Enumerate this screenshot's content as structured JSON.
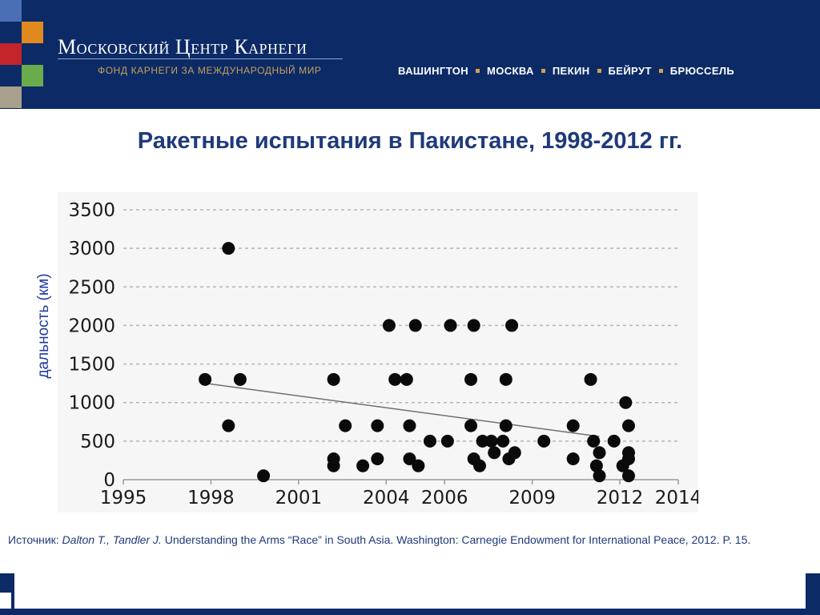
{
  "header": {
    "brand_title": "Московский Центр Карнеги",
    "brand_subtitle": "ФОНД КАРНЕГИ ЗА МЕЖДУНАРОДНЫЙ МИР",
    "cities": [
      "ВАШИНГТОН",
      "МОСКВА",
      "ПЕКИН",
      "БЕЙРУТ",
      "БРЮССЕЛЬ"
    ],
    "colors": {
      "band": "#0b2a66",
      "orange": "#e08a1e",
      "red": "#c4242b",
      "green": "#6aab4b",
      "grey": "#a89f8c",
      "light_blue": "#4a6fb5"
    }
  },
  "slide": {
    "title": "Ракетные испытания в Пакистане, 1998-2012 гг."
  },
  "chart_data": {
    "type": "scatter",
    "title": "",
    "xlabel": "",
    "ylabel": "дальность (км)",
    "xlim": [
      1995,
      2014
    ],
    "ylim": [
      0,
      3500
    ],
    "x_ticks": [
      1995,
      1998,
      2001,
      2004,
      2006,
      2009,
      2012,
      2014
    ],
    "y_ticks": [
      0,
      500,
      1000,
      1500,
      2000,
      2500,
      3000,
      3500
    ],
    "grid": "horizontal-dashed",
    "trendline": {
      "x": [
        1997.8,
        2011.3
      ],
      "y": [
        1250,
        560
      ]
    },
    "points": [
      {
        "x": 1997.8,
        "y": 1300
      },
      {
        "x": 1998.6,
        "y": 3000
      },
      {
        "x": 1998.6,
        "y": 700
      },
      {
        "x": 1999.0,
        "y": 1300
      },
      {
        "x": 1999.8,
        "y": 50
      },
      {
        "x": 2002.2,
        "y": 1300
      },
      {
        "x": 2002.2,
        "y": 270
      },
      {
        "x": 2002.2,
        "y": 180
      },
      {
        "x": 2002.6,
        "y": 700
      },
      {
        "x": 2003.2,
        "y": 180
      },
      {
        "x": 2003.7,
        "y": 700
      },
      {
        "x": 2003.7,
        "y": 270
      },
      {
        "x": 2004.1,
        "y": 2000
      },
      {
        "x": 2004.3,
        "y": 1300
      },
      {
        "x": 2004.7,
        "y": 1300
      },
      {
        "x": 2004.8,
        "y": 700
      },
      {
        "x": 2004.8,
        "y": 270
      },
      {
        "x": 2005.0,
        "y": 2000
      },
      {
        "x": 2005.1,
        "y": 180
      },
      {
        "x": 2005.5,
        "y": 500
      },
      {
        "x": 2006.1,
        "y": 500
      },
      {
        "x": 2006.2,
        "y": 2000
      },
      {
        "x": 2006.9,
        "y": 1300
      },
      {
        "x": 2006.9,
        "y": 700
      },
      {
        "x": 2007.0,
        "y": 2000
      },
      {
        "x": 2007.0,
        "y": 270
      },
      {
        "x": 2007.2,
        "y": 180
      },
      {
        "x": 2007.3,
        "y": 500
      },
      {
        "x": 2007.6,
        "y": 500
      },
      {
        "x": 2007.7,
        "y": 350
      },
      {
        "x": 2008.0,
        "y": 500
      },
      {
        "x": 2008.1,
        "y": 1300
      },
      {
        "x": 2008.1,
        "y": 700
      },
      {
        "x": 2008.2,
        "y": 270
      },
      {
        "x": 2008.3,
        "y": 2000
      },
      {
        "x": 2008.4,
        "y": 350
      },
      {
        "x": 2009.4,
        "y": 500
      },
      {
        "x": 2010.4,
        "y": 700
      },
      {
        "x": 2010.4,
        "y": 270
      },
      {
        "x": 2011.0,
        "y": 1300
      },
      {
        "x": 2011.1,
        "y": 500
      },
      {
        "x": 2011.2,
        "y": 180
      },
      {
        "x": 2011.3,
        "y": 350
      },
      {
        "x": 2011.3,
        "y": 50
      },
      {
        "x": 2011.8,
        "y": 500
      },
      {
        "x": 2012.1,
        "y": 180
      },
      {
        "x": 2012.2,
        "y": 1000
      },
      {
        "x": 2012.3,
        "y": 700
      },
      {
        "x": 2012.3,
        "y": 350
      },
      {
        "x": 2012.3,
        "y": 270
      },
      {
        "x": 2012.3,
        "y": 50
      }
    ]
  },
  "source": {
    "prefix": "Источник: ",
    "authors": "Dalton T., Tandler J.",
    "text": " Understanding the Arms “Race” in South Asia. Washington: Carnegie Endowment for International Peace, 2012. P. 15."
  }
}
